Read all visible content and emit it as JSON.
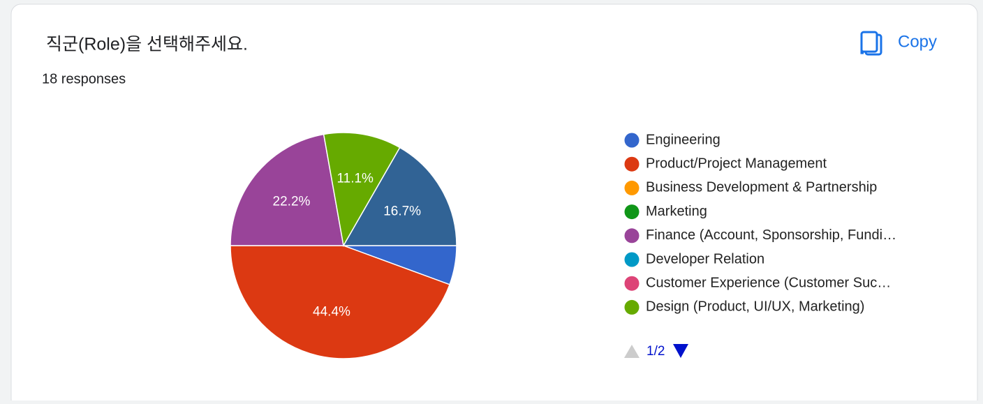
{
  "header": {
    "title": "직군(Role)을 선택해주세요.",
    "responses": "18 responses",
    "copy": "Copy"
  },
  "chart_data": {
    "type": "pie",
    "categories": [
      "Engineering",
      "Product/Project Management",
      "Business Development & Partnership",
      "Marketing",
      "Finance (Account, Sponsorship, Fundi…",
      "Developer Relation",
      "Customer Experience (Customer Suc…",
      "Design (Product, UI/UX, Marketing)",
      null
    ],
    "values": [
      5.6,
      44.4,
      0,
      0,
      22.2,
      0,
      0,
      11.1,
      16.7
    ],
    "value_labels": [
      null,
      "44.4%",
      null,
      null,
      "22.2%",
      null,
      null,
      "11.1%",
      "16.7%"
    ],
    "colors": [
      "#3366cc",
      "#dc3912",
      "#ff9900",
      "#109618",
      "#994499",
      "#0099c6",
      "#dd4477",
      "#66aa00",
      "#316395"
    ],
    "legend_page": "1/2"
  }
}
